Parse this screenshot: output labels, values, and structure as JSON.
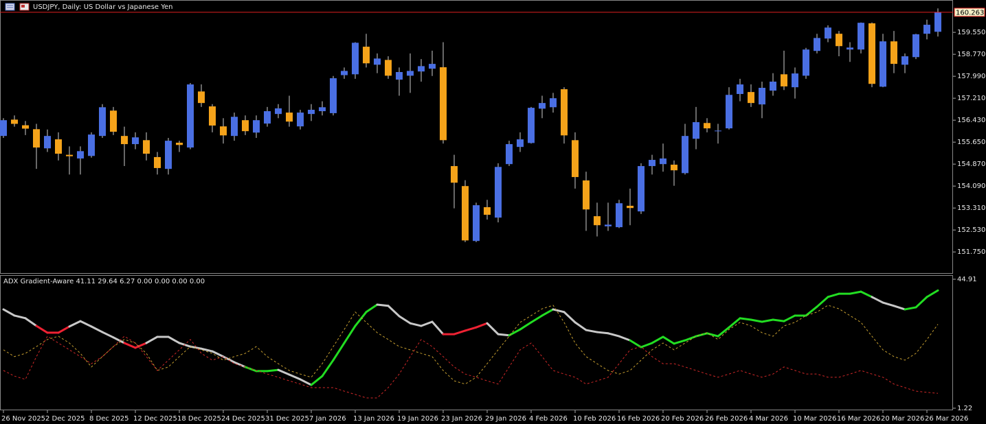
{
  "chart_data": [
    {
      "type": "candlestick",
      "title": "USDJPY, Daily:  US Dollar vs Japanese Yen",
      "categories": [
        "26 Nov 2025",
        null,
        null,
        null,
        "2 Dec 2025",
        null,
        null,
        null,
        "8 Dec 2025",
        null,
        null,
        null,
        "12 Dec 2025",
        null,
        null,
        null,
        "18 Dec 2025",
        null,
        null,
        null,
        "24 Dec 2025",
        null,
        null,
        null,
        "31 Dec 2025",
        null,
        null,
        null,
        "7 Jan 2026",
        null,
        null,
        null,
        "13 Jan 2026",
        null,
        null,
        null,
        "19 Jan 2026",
        null,
        null,
        null,
        "23 Jan 2026",
        null,
        null,
        null,
        "29 Jan 2026",
        null,
        null,
        null,
        "4 Feb 2026",
        null,
        null,
        null,
        "10 Feb 2026",
        null,
        null,
        null,
        "16 Feb 2026",
        null,
        null,
        null,
        "20 Feb 2026",
        null,
        null,
        null,
        "26 Feb 2026",
        null,
        null,
        null,
        "4 Mar 2026",
        null,
        null,
        null,
        "10 Mar 2026",
        null,
        null,
        null,
        "16 Mar 2026",
        null,
        null,
        null,
        "20 Mar 2026",
        null,
        null,
        null,
        "26 Mar 2026",
        null
      ],
      "open": [
        155.87,
        156.45,
        156.25,
        156.11,
        155.43,
        155.75,
        155.2,
        155.07,
        155.16,
        155.87,
        156.77,
        155.87,
        155.58,
        155.72,
        155.12,
        154.7,
        155.63,
        155.46,
        157.45,
        156.92,
        156.21,
        155.87,
        156.43,
        155.99,
        156.31,
        156.65,
        156.7,
        156.21,
        156.65,
        156.75,
        156.68,
        158.03,
        158.06,
        159.04,
        158.4,
        158.57,
        157.87,
        158.01,
        158.16,
        158.26,
        158.31,
        154.8,
        154.09,
        152.14,
        153.34,
        152.97,
        154.87,
        155.48,
        155.62,
        156.84,
        156.89,
        157.53,
        155.72,
        154.29,
        153.02,
        152.66,
        152.63,
        153.39,
        153.19,
        154.8,
        154.87,
        154.85,
        154.55,
        155.77,
        156.33,
        156.06,
        156.14,
        157.36,
        157.43,
        156.99,
        157.48,
        158.06,
        157.6,
        158.01,
        158.89,
        159.33,
        159.5,
        158.94,
        158.94,
        159.87,
        157.62,
        159.23,
        158.4,
        158.67,
        159.5,
        159.57
      ],
      "high": [
        156.5,
        156.6,
        156.4,
        156.3,
        156.1,
        156.0,
        155.5,
        155.5,
        156.0,
        157.0,
        156.9,
        156.2,
        156.0,
        156.0,
        155.3,
        155.8,
        155.7,
        157.75,
        157.7,
        157.0,
        156.5,
        156.7,
        156.6,
        156.6,
        156.9,
        157.0,
        157.3,
        156.8,
        157.0,
        157.1,
        158.0,
        158.3,
        159.2,
        159.5,
        158.8,
        158.7,
        158.3,
        158.8,
        158.6,
        158.9,
        159.2,
        155.2,
        154.3,
        153.5,
        153.6,
        154.9,
        155.7,
        156.0,
        156.9,
        157.3,
        157.4,
        157.6,
        156.0,
        154.6,
        153.5,
        153.5,
        153.6,
        154.0,
        154.9,
        155.2,
        155.6,
        155.0,
        156.3,
        156.9,
        156.5,
        156.3,
        157.6,
        157.9,
        157.7,
        157.8,
        158.1,
        158.9,
        158.3,
        159.0,
        159.5,
        159.8,
        159.6,
        159.2,
        159.9,
        159.9,
        159.5,
        159.6,
        158.8,
        159.5,
        160.0,
        160.4
      ],
      "low": [
        155.8,
        156.2,
        155.9,
        154.7,
        155.3,
        155.0,
        154.5,
        154.5,
        155.1,
        155.8,
        155.9,
        154.8,
        155.4,
        155.0,
        154.5,
        154.5,
        155.3,
        155.4,
        156.9,
        156.0,
        155.6,
        155.7,
        155.9,
        155.8,
        156.2,
        156.5,
        156.2,
        156.1,
        156.4,
        156.6,
        156.6,
        157.9,
        157.9,
        158.3,
        158.1,
        157.9,
        157.3,
        157.4,
        157.8,
        158.0,
        155.6,
        153.3,
        152.1,
        152.1,
        152.9,
        152.8,
        154.8,
        155.3,
        155.6,
        156.5,
        156.7,
        155.6,
        154.0,
        152.5,
        152.3,
        152.5,
        152.6,
        152.7,
        153.1,
        154.5,
        154.6,
        154.1,
        154.5,
        155.4,
        156.0,
        155.6,
        156.1,
        157.1,
        156.9,
        156.5,
        157.3,
        157.5,
        157.2,
        157.9,
        158.8,
        159.2,
        158.7,
        158.5,
        158.8,
        157.6,
        157.6,
        158.1,
        158.1,
        158.6,
        159.3,
        159.4
      ],
      "close": [
        156.43,
        156.3,
        156.13,
        155.46,
        155.87,
        155.24,
        155.15,
        155.33,
        155.92,
        156.89,
        156.02,
        155.58,
        155.82,
        155.24,
        154.73,
        155.7,
        155.55,
        157.7,
        157.04,
        156.24,
        155.89,
        156.55,
        156.04,
        156.43,
        156.75,
        156.85,
        156.38,
        156.7,
        156.8,
        156.89,
        157.92,
        158.18,
        159.18,
        158.45,
        158.62,
        158.01,
        158.14,
        158.18,
        158.35,
        158.43,
        155.72,
        154.21,
        152.16,
        153.41,
        153.07,
        154.77,
        155.58,
        155.75,
        156.87,
        157.04,
        157.21,
        155.89,
        154.41,
        153.26,
        152.7,
        152.72,
        153.48,
        153.31,
        154.8,
        155.02,
        155.07,
        154.65,
        155.87,
        156.36,
        156.14,
        156.06,
        157.33,
        157.7,
        157.04,
        157.58,
        157.8,
        157.63,
        158.09,
        158.94,
        159.35,
        159.72,
        159.06,
        159.01,
        159.89,
        157.72,
        159.23,
        158.43,
        158.7,
        159.48,
        159.82,
        160.263
      ],
      "up_color": "#4a6fe3",
      "down_color": "#f5a31a",
      "wick_color": "#d0d0d0",
      "ylim": [
        151.0,
        160.65
      ],
      "yticks": [
        {
          "value": 151.75,
          "label": "151.750"
        },
        {
          "value": 152.53,
          "label": "152.530"
        },
        {
          "value": 153.31,
          "label": "153.310"
        },
        {
          "value": 154.09,
          "label": "154.090"
        },
        {
          "value": 154.87,
          "label": "154.870"
        },
        {
          "value": 155.65,
          "label": "155.650"
        },
        {
          "value": 156.43,
          "label": "156.430"
        },
        {
          "value": 157.21,
          "label": "157.210"
        },
        {
          "value": 157.99,
          "label": "157.990"
        },
        {
          "value": 158.77,
          "label": "158.770"
        },
        {
          "value": 159.55,
          "label": "159.550"
        }
      ],
      "last_price": 160.263,
      "last_price_color": "#e02020"
    },
    {
      "type": "line",
      "title": "ADX Gradient-Aware 41.11 29.64 6.27 0.00 0.00 0.00 0.00",
      "ylim": [
        1.22,
        44.91
      ],
      "yticks": [
        1.22,
        44.91
      ],
      "series": [
        {
          "width": 3,
          "dashed": false,
          "values": [
            34.7,
            32.6,
            31.7,
            29.1,
            26.8,
            26.8,
            28.9,
            30.7,
            28.9,
            27.0,
            25.2,
            23.3,
            21.7,
            23.3,
            25.4,
            25.4,
            23.3,
            22.1,
            21.4,
            20.5,
            18.7,
            16.8,
            15.2,
            13.8,
            13.8,
            14.2,
            12.6,
            11.0,
            9.1,
            12.1,
            17.5,
            23.3,
            29.1,
            33.8,
            36.3,
            35.9,
            32.4,
            30.0,
            29.1,
            30.5,
            26.3,
            26.3,
            27.5,
            28.6,
            30.0,
            26.3,
            25.9,
            27.9,
            30.3,
            32.6,
            34.7,
            33.8,
            30.3,
            27.7,
            27.0,
            26.6,
            25.6,
            24.2,
            21.9,
            23.3,
            25.4,
            23.1,
            24.2,
            25.6,
            26.6,
            25.6,
            28.6,
            31.7,
            31.2,
            30.5,
            31.2,
            30.7,
            32.6,
            32.6,
            35.6,
            38.9,
            40.0,
            40.0,
            40.7,
            38.9,
            37.0,
            35.9,
            34.7,
            35.4,
            38.9,
            41.11
          ],
          "segment_colors": [
            "#c8c8c8",
            "#c8c8c8",
            "#c8c8c8",
            "#c8c8c8",
            "#ee2233",
            "#ee2233",
            "#ee2233",
            "#c8c8c8",
            "#c8c8c8",
            "#c8c8c8",
            "#c8c8c8",
            "#c8c8c8",
            "#ee2233",
            "#ee2233",
            "#c8c8c8",
            "#c8c8c8",
            "#c8c8c8",
            "#c8c8c8",
            "#c8c8c8",
            "#c8c8c8",
            "#c8c8c8",
            "#c8c8c8",
            "#c8c8c8",
            "#22dd22",
            "#22dd22",
            "#22dd22",
            "#c8c8c8",
            "#c8c8c8",
            "#c8c8c8",
            "#22dd22",
            "#22dd22",
            "#22dd22",
            "#22dd22",
            "#22dd22",
            "#22dd22",
            "#c8c8c8",
            "#c8c8c8",
            "#c8c8c8",
            "#c8c8c8",
            "#c8c8c8",
            "#c8c8c8",
            "#ee2233",
            "#ee2233",
            "#ee2233",
            "#ee2233",
            "#c8c8c8",
            "#c8c8c8",
            "#22dd22",
            "#22dd22",
            "#22dd22",
            "#22dd22",
            "#c8c8c8",
            "#c8c8c8",
            "#c8c8c8",
            "#c8c8c8",
            "#c8c8c8",
            "#c8c8c8",
            "#c8c8c8",
            "#22dd22",
            "#22dd22",
            "#22dd22",
            "#22dd22",
            "#22dd22",
            "#22dd22",
            "#22dd22",
            "#22dd22",
            "#22dd22",
            "#22dd22",
            "#22dd22",
            "#22dd22",
            "#22dd22",
            "#22dd22",
            "#22dd22",
            "#22dd22",
            "#22dd22",
            "#22dd22",
            "#22dd22",
            "#22dd22",
            "#22dd22",
            "#22dd22",
            "#c8c8c8",
            "#c8c8c8",
            "#c8c8c8",
            "#22dd22",
            "#22dd22",
            "#22dd22"
          ]
        },
        {
          "width": 1,
          "dashed": true,
          "color": "#c8a030",
          "values": [
            21.0,
            18.7,
            19.8,
            22.1,
            24.5,
            25.6,
            23.3,
            19.8,
            15.2,
            18.7,
            22.1,
            24.5,
            23.3,
            19.8,
            14.0,
            15.2,
            18.7,
            22.1,
            21.0,
            19.8,
            17.5,
            18.7,
            19.8,
            22.1,
            18.7,
            16.3,
            14.0,
            12.8,
            11.7,
            16.3,
            22.1,
            27.9,
            33.8,
            30.3,
            26.8,
            24.5,
            22.1,
            21.0,
            19.8,
            18.7,
            14.0,
            10.5,
            9.4,
            11.7,
            16.3,
            21.0,
            25.6,
            30.3,
            32.6,
            34.9,
            36.1,
            30.3,
            23.3,
            18.7,
            16.3,
            14.0,
            12.8,
            14.0,
            17.5,
            21.0,
            23.3,
            21.0,
            23.3,
            25.6,
            26.8,
            24.5,
            27.9,
            30.3,
            29.1,
            26.8,
            25.6,
            29.1,
            30.3,
            32.6,
            33.8,
            36.1,
            34.9,
            32.6,
            30.3,
            25.6,
            21.0,
            18.7,
            17.5,
            19.8,
            24.5,
            29.64
          ]
        },
        {
          "width": 1,
          "dashed": true,
          "color": "#d02828",
          "values": [
            14.0,
            12.1,
            11.0,
            18.7,
            25.6,
            23.3,
            21.0,
            18.7,
            16.3,
            18.7,
            22.1,
            25.6,
            23.3,
            18.7,
            14.0,
            17.5,
            21.0,
            24.5,
            19.8,
            17.5,
            18.7,
            16.3,
            15.2,
            14.0,
            12.8,
            11.7,
            10.5,
            9.4,
            8.2,
            8.2,
            8.2,
            7.0,
            5.9,
            4.7,
            4.7,
            8.2,
            12.8,
            18.7,
            24.5,
            22.1,
            18.7,
            15.2,
            12.8,
            11.7,
            10.5,
            9.4,
            15.2,
            21.0,
            23.3,
            18.7,
            14.0,
            12.8,
            11.7,
            9.4,
            10.5,
            11.7,
            16.3,
            21.0,
            22.1,
            18.7,
            16.3,
            16.3,
            15.2,
            14.0,
            12.8,
            11.7,
            12.8,
            14.0,
            12.8,
            11.7,
            12.8,
            15.2,
            14.0,
            12.8,
            12.8,
            11.7,
            11.7,
            12.8,
            14.0,
            12.8,
            11.7,
            9.4,
            8.2,
            7.0,
            6.6,
            6.27
          ]
        }
      ]
    }
  ]
}
